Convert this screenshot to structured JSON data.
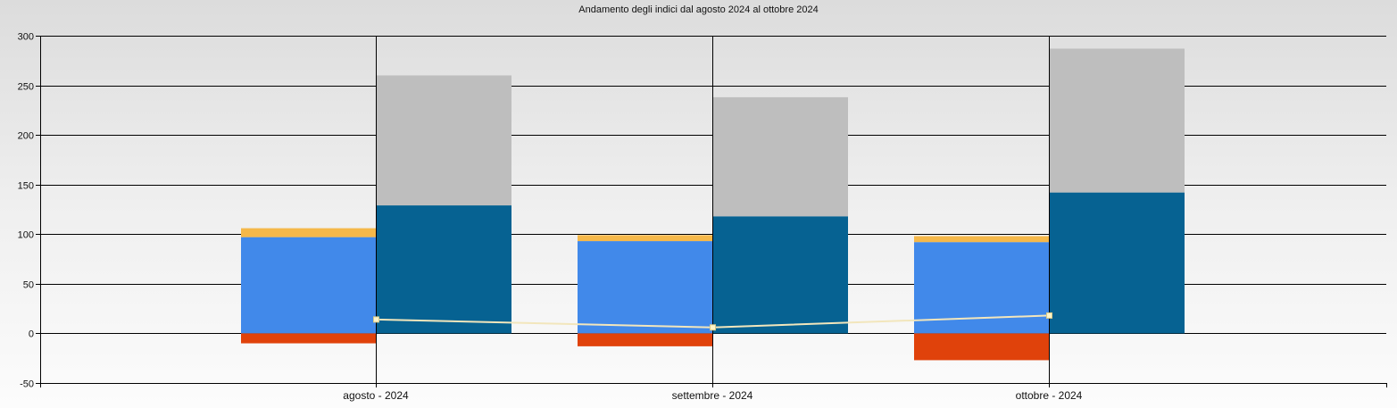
{
  "chart_data": {
    "type": "bar",
    "title": "Andamento degli indici dal agosto 2024 al ottobre 2024",
    "xlabel": "",
    "ylabel": "",
    "categories": [
      "agosto - 2024",
      "settembre - 2024",
      "ottobre - 2024"
    ],
    "ylim": [
      -50,
      300
    ],
    "yticks": [
      300,
      250,
      200,
      150,
      100,
      50,
      0,
      -50
    ],
    "grid": true,
    "stack_left": [
      {
        "color": "#4189ea",
        "values": [
          97,
          93,
          92
        ]
      },
      {
        "color": "#f5b84a",
        "values": [
          9,
          6,
          6
        ]
      },
      {
        "color": "#e0420b",
        "values": [
          -10,
          -13,
          -27
        ]
      }
    ],
    "stack_right": [
      {
        "color": "#066292",
        "values": [
          129,
          118,
          142
        ]
      },
      {
        "color": "#bebebe",
        "values": [
          131,
          120,
          145
        ]
      }
    ],
    "line": {
      "color": "#f2e6bc",
      "values": [
        14,
        6,
        18
      ]
    }
  }
}
